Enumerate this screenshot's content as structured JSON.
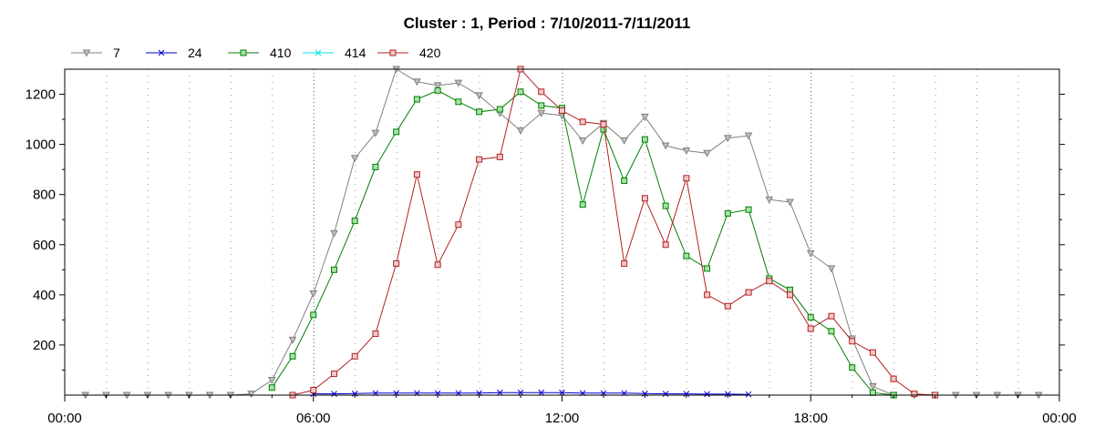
{
  "chart_data": {
    "type": "line",
    "title": "Cluster : 1, Period : 7/10/2011-7/11/2011",
    "xlabel": "",
    "ylabel": "",
    "x_ticks": [
      "00:00",
      "06:00",
      "12:00",
      "18:00",
      "00:00"
    ],
    "y_ticks": [
      "200",
      "400",
      "600",
      "800",
      "1000",
      "1200"
    ],
    "xlim_hours": [
      0,
      24
    ],
    "ylim": [
      0,
      1300
    ],
    "grid": "dotted vertical lines",
    "legend_position": "top-left",
    "series": [
      {
        "name": "7",
        "color": "#808080",
        "marker": "triangle-down",
        "x": [
          0.5,
          1.0,
          1.5,
          2.0,
          2.5,
          3.0,
          3.5,
          4.0,
          4.5,
          5.0,
          5.5,
          6.0,
          6.5,
          7.0,
          7.5,
          8.0,
          8.5,
          9.0,
          9.5,
          10.0,
          10.5,
          11.0,
          11.5,
          12.0,
          12.5,
          13.0,
          13.5,
          14.0,
          14.5,
          15.0,
          15.5,
          16.0,
          16.5,
          17.0,
          17.5,
          18.0,
          18.5,
          19.0,
          19.5,
          20.0,
          20.5,
          21.0,
          21.5,
          22.0,
          22.5,
          23.0,
          23.5
        ],
        "y": [
          0,
          0,
          0,
          0,
          0,
          0,
          0,
          0,
          5,
          60,
          220,
          405,
          645,
          945,
          1045,
          1300,
          1250,
          1235,
          1245,
          1195,
          1125,
          1055,
          1125,
          1115,
          1015,
          1085,
          1015,
          1110,
          995,
          975,
          965,
          1025,
          1035,
          780,
          770,
          565,
          505,
          225,
          35,
          0,
          0,
          0,
          0,
          0,
          0,
          0,
          0
        ]
      },
      {
        "name": "24",
        "color": "#0000CC",
        "marker": "x",
        "x": [
          6.0,
          6.5,
          7.0,
          7.5,
          8.0,
          8.5,
          9.0,
          9.5,
          10.0,
          10.5,
          11.0,
          11.5,
          12.0,
          12.5,
          13.0,
          13.5,
          14.0,
          14.5,
          15.0,
          15.5,
          16.0,
          16.5
        ],
        "y": [
          5,
          5,
          6,
          8,
          8,
          8,
          8,
          8,
          8,
          10,
          10,
          10,
          10,
          8,
          8,
          8,
          6,
          5,
          5,
          4,
          4,
          3
        ]
      },
      {
        "name": "410",
        "color": "#008000",
        "marker": "square",
        "x": [
          5.0,
          5.5,
          6.0,
          6.5,
          7.0,
          7.5,
          8.0,
          8.5,
          9.0,
          9.5,
          10.0,
          10.5,
          11.0,
          11.5,
          12.0,
          12.5,
          13.0,
          13.5,
          14.0,
          14.5,
          15.0,
          15.5,
          16.0,
          16.5,
          17.0,
          17.5,
          18.0,
          18.5,
          19.0,
          19.5,
          20.0
        ],
        "y": [
          30,
          155,
          320,
          500,
          695,
          910,
          1050,
          1180,
          1215,
          1170,
          1130,
          1140,
          1210,
          1155,
          1145,
          760,
          1060,
          855,
          1020,
          755,
          555,
          505,
          725,
          740,
          465,
          420,
          310,
          255,
          110,
          10,
          0
        ]
      },
      {
        "name": "414",
        "color": "#00E5E5",
        "marker": "x",
        "x": [],
        "y": []
      },
      {
        "name": "420",
        "color": "#B22222",
        "marker": "square",
        "x": [
          5.5,
          6.0,
          6.5,
          7.0,
          7.5,
          8.0,
          8.5,
          9.0,
          9.5,
          10.0,
          10.5,
          11.0,
          11.5,
          12.0,
          12.5,
          13.0,
          13.5,
          14.0,
          14.5,
          15.0,
          15.5,
          16.0,
          16.5,
          17.0,
          17.5,
          18.0,
          18.5,
          19.0,
          19.5,
          20.0,
          20.5,
          21.0
        ],
        "y": [
          0,
          20,
          85,
          155,
          245,
          525,
          880,
          520,
          680,
          940,
          950,
          1300,
          1210,
          1135,
          1090,
          1080,
          525,
          785,
          600,
          865,
          400,
          355,
          410,
          455,
          400,
          265,
          315,
          215,
          170,
          65,
          5,
          0
        ]
      }
    ]
  }
}
